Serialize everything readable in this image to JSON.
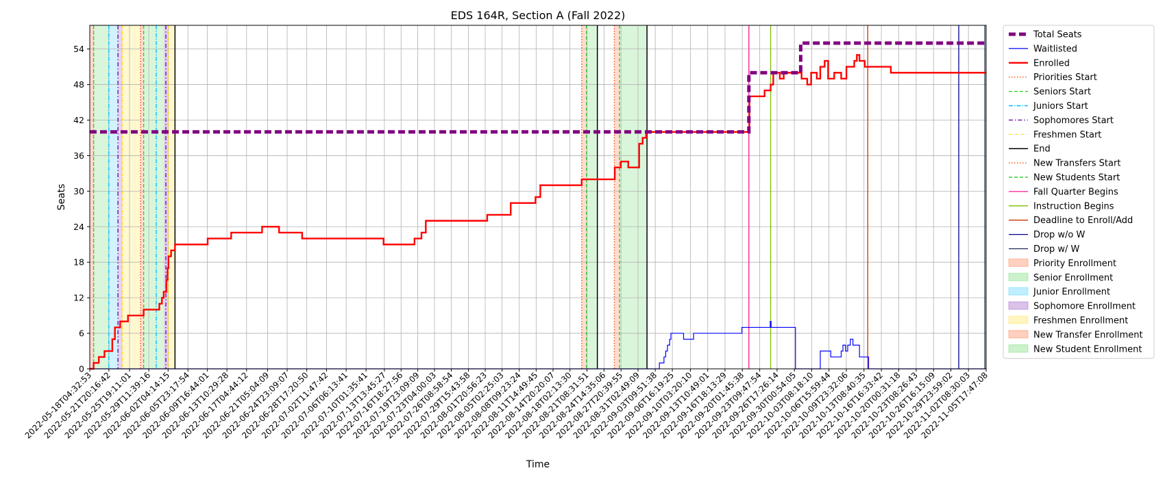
{
  "chart_data": {
    "type": "line",
    "title": "EDS 164R, Section A (Fall 2022)",
    "xlabel": "Time",
    "ylabel": "Seats",
    "ylim": [
      0,
      58
    ],
    "yticks": [
      0,
      6,
      12,
      18,
      24,
      30,
      36,
      42,
      48,
      54
    ],
    "grid": true,
    "legend_position": "outside-right",
    "xlim": [
      "2022-05-18T04:32:53",
      "2022-11-05T17:47:08"
    ],
    "xticks": [
      "2022-05-18T04:32:53",
      "2022-05-21T20:16:42",
      "2022-05-25T19:11:01",
      "2022-05-29T11:39:16",
      "2022-06-02T04:14:15",
      "2022-06-05T23:17:54",
      "2022-06-09T16:44:01",
      "2022-06-13T10:29:28",
      "2022-06-17T04:44:12",
      "2022-06-21T05:04:09",
      "2022-06-24T23:09:07",
      "2022-06-28T17:20:50",
      "2022-07-02T11:47:42",
      "2022-07-06T06:13:41",
      "2022-07-10T01:35:41",
      "2022-07-13T13:45:27",
      "2022-07-16T18:27:56",
      "2022-07-19T23:09:09",
      "2022-07-23T04:00:03",
      "2022-07-26T08:58:54",
      "2022-07-29T15:43:58",
      "2022-08-01T20:56:23",
      "2022-08-05T02:25:03",
      "2022-08-08T09:23:24",
      "2022-08-11T14:49:45",
      "2022-08-14T20:20:07",
      "2022-08-18T02:13:30",
      "2022-08-21T08:31:51",
      "2022-08-24T14:35:06",
      "2022-08-27T20:39:55",
      "2022-08-31T02:49:09",
      "2022-09-03T09:51:38",
      "2022-09-06T16:19:25",
      "2022-09-10T03:20:10",
      "2022-09-13T10:49:01",
      "2022-09-16T18:13:29",
      "2022-09-20T01:45:38",
      "2022-09-23T09:47:54",
      "2022-09-26T17:26:14",
      "2022-09-30T00:54:05",
      "2022-10-03T08:18:10",
      "2022-10-06T15:59:44",
      "2022-10-09T23:32:06",
      "2022-10-13T08:40:35",
      "2022-10-16T16:33:42",
      "2022-10-20T00:31:18",
      "2022-10-23T08:26:43",
      "2022-10-26T16:15:09",
      "2022-10-29T23:59:02",
      "2022-11-02T08:30:03",
      "2022-11-05T17:47:08"
    ],
    "colors": {
      "total": "#800080",
      "waitlisted": "#0000ff",
      "enrolled": "#ff0000",
      "priority": "#ff4500",
      "senior": "#32cd32",
      "junior": "#00bfff",
      "sophomore": "#6a0dad",
      "freshmen": "#ffd700",
      "end": "#000000",
      "new_transfer": "#ff4500",
      "new_student": "#32cd32",
      "fall_quarter": "#ff1493",
      "instruction": "#7cbb00",
      "deadline": "#cc3300",
      "drop_wo_w": "#00008b",
      "drop_w_w": "#1a2a55"
    },
    "shaded_periods": [
      {
        "kind": "priority",
        "start": "2022-05-18T04:32:53",
        "end": "2022-05-18T22:00:00"
      },
      {
        "kind": "senior",
        "start": "2022-05-18T22:00:00",
        "end": "2022-05-21T20:00:00"
      },
      {
        "kind": "junior",
        "start": "2022-05-21T20:00:00",
        "end": "2022-05-23T14:00:00"
      },
      {
        "kind": "sophomore",
        "start": "2022-05-23T14:00:00",
        "end": "2022-05-24T10:00:00"
      },
      {
        "kind": "freshmen",
        "start": "2022-05-24T10:00:00",
        "end": "2022-05-27T22:00:00"
      },
      {
        "kind": "priority",
        "start": "2022-05-27T22:00:00",
        "end": "2022-05-28T12:00:00"
      },
      {
        "kind": "senior",
        "start": "2022-05-28T12:00:00",
        "end": "2022-06-01T08:00:00"
      },
      {
        "kind": "sophomore",
        "start": "2022-06-01T08:00:00",
        "end": "2022-06-02T06:00:00"
      },
      {
        "kind": "freshmen",
        "start": "2022-06-02T06:00:00",
        "end": "2022-06-03T12:00:00"
      },
      {
        "kind": "new_transfer",
        "start": "2022-08-20T08:00:00",
        "end": "2022-08-21T06:00:00"
      },
      {
        "kind": "new_student",
        "start": "2022-08-21T06:00:00",
        "end": "2022-08-23T08:00:00"
      },
      {
        "kind": "new_transfer",
        "start": "2022-08-26T14:00:00",
        "end": "2022-08-27T14:00:00"
      },
      {
        "kind": "new_student",
        "start": "2022-08-27T14:00:00",
        "end": "2022-09-01T20:00:00"
      }
    ],
    "markers": [
      {
        "kind": "priority",
        "x": "2022-05-18T22:00:00"
      },
      {
        "kind": "senior",
        "x": "2022-05-18T22:00:00"
      },
      {
        "kind": "junior",
        "x": "2022-05-21T20:00:00"
      },
      {
        "kind": "sophomore",
        "x": "2022-05-23T14:00:00"
      },
      {
        "kind": "freshmen",
        "x": "2022-05-24T10:00:00"
      },
      {
        "kind": "priority",
        "x": "2022-05-27T22:00:00"
      },
      {
        "kind": "senior",
        "x": "2022-05-28T12:00:00"
      },
      {
        "kind": "junior",
        "x": "2022-05-30T22:00:00"
      },
      {
        "kind": "sophomore",
        "x": "2022-06-01T18:00:00"
      },
      {
        "kind": "freshmen",
        "x": "2022-06-02T06:00:00"
      },
      {
        "kind": "end",
        "x": "2022-06-03T12:00:00"
      },
      {
        "kind": "new_transfer",
        "x": "2022-08-20T08:00:00"
      },
      {
        "kind": "new_student",
        "x": "2022-08-21T06:00:00"
      },
      {
        "kind": "end",
        "x": "2022-08-23T08:00:00"
      },
      {
        "kind": "new_transfer",
        "x": "2022-08-26T14:00:00"
      },
      {
        "kind": "new_student",
        "x": "2022-08-27T14:00:00"
      },
      {
        "kind": "end",
        "x": "2022-09-01T20:00:00"
      },
      {
        "kind": "fall_quarter",
        "x": "2022-09-21T08:00:00"
      },
      {
        "kind": "instruction",
        "x": "2022-09-25T12:00:00"
      },
      {
        "kind": "deadline",
        "x": "2022-10-14T02:00:00"
      },
      {
        "kind": "drop_wo_w",
        "x": "2022-10-31T12:00:00"
      },
      {
        "kind": "drop_w_w",
        "x": "2022-11-05T12:00:00"
      }
    ],
    "series": [
      {
        "key": "total",
        "name": "Total Seats",
        "points": [
          [
            "2022-05-18T04:32:53",
            40
          ],
          [
            "2022-09-21T08:00:00",
            50
          ],
          [
            "2022-10-01T06:00:00",
            55
          ],
          [
            "2022-11-05T17:47:08",
            55
          ]
        ]
      },
      {
        "key": "waitlisted",
        "name": "Waitlisted",
        "points": [
          [
            "2022-05-18T04:32:53",
            0
          ],
          [
            "2022-09-04T05:00:00",
            1
          ],
          [
            "2022-09-05T02:00:00",
            2
          ],
          [
            "2022-09-05T10:00:00",
            3
          ],
          [
            "2022-09-05T18:00:00",
            4
          ],
          [
            "2022-09-06T04:00:00",
            5
          ],
          [
            "2022-09-06T10:00:00",
            6
          ],
          [
            "2022-09-08T20:00:00",
            5
          ],
          [
            "2022-09-10T18:00:00",
            6
          ],
          [
            "2022-09-20T00:00:00",
            7
          ],
          [
            "2022-09-25T10:00:00",
            8
          ],
          [
            "2022-09-25T14:00:00",
            7
          ],
          [
            "2022-09-30T06:00:00",
            0
          ],
          [
            "2022-10-05T00:00:00",
            3
          ],
          [
            "2022-10-07T00:00:00",
            2
          ],
          [
            "2022-10-09T00:00:00",
            3
          ],
          [
            "2022-10-09T08:00:00",
            4
          ],
          [
            "2022-10-09T20:00:00",
            3
          ],
          [
            "2022-10-10T06:00:00",
            4
          ],
          [
            "2022-10-10T18:00:00",
            5
          ],
          [
            "2022-10-11T06:00:00",
            4
          ],
          [
            "2022-10-12T12:00:00",
            2
          ],
          [
            "2022-10-14T06:00:00",
            0
          ],
          [
            "2022-11-05T17:47:08",
            0
          ]
        ]
      },
      {
        "key": "enrolled",
        "name": "Enrolled",
        "points": [
          [
            "2022-05-18T04:32:53",
            0
          ],
          [
            "2022-05-18T22:00:00",
            1
          ],
          [
            "2022-05-19T22:00:00",
            2
          ],
          [
            "2022-05-21T00:00:00",
            3
          ],
          [
            "2022-05-22T12:00:00",
            5
          ],
          [
            "2022-05-23T00:00:00",
            7
          ],
          [
            "2022-05-24T00:00:00",
            8
          ],
          [
            "2022-05-25T12:00:00",
            9
          ],
          [
            "2022-05-28T12:00:00",
            10
          ],
          [
            "2022-05-31T12:00:00",
            11
          ],
          [
            "2022-06-01T00:00:00",
            12
          ],
          [
            "2022-06-01T08:00:00",
            13
          ],
          [
            "2022-06-01T20:00:00",
            15
          ],
          [
            "2022-06-02T02:00:00",
            17
          ],
          [
            "2022-06-02T06:00:00",
            19
          ],
          [
            "2022-06-02T18:00:00",
            20
          ],
          [
            "2022-06-03T12:00:00",
            21
          ],
          [
            "2022-06-09T18:00:00",
            22
          ],
          [
            "2022-06-14T06:00:00",
            23
          ],
          [
            "2022-06-20T04:00:00",
            24
          ],
          [
            "2022-06-23T10:00:00",
            23
          ],
          [
            "2022-06-27T20:00:00",
            22
          ],
          [
            "2022-07-13T10:00:00",
            21
          ],
          [
            "2022-07-19T08:00:00",
            22
          ],
          [
            "2022-07-20T16:00:00",
            23
          ],
          [
            "2022-07-21T12:00:00",
            25
          ],
          [
            "2022-08-02T06:00:00",
            26
          ],
          [
            "2022-08-06T18:00:00",
            28
          ],
          [
            "2022-08-11T12:00:00",
            29
          ],
          [
            "2022-08-12T10:00:00",
            31
          ],
          [
            "2022-08-20T08:00:00",
            32
          ],
          [
            "2022-08-26T16:00:00",
            34
          ],
          [
            "2022-08-27T20:00:00",
            35
          ],
          [
            "2022-08-29T06:00:00",
            34
          ],
          [
            "2022-08-31T08:00:00",
            38
          ],
          [
            "2022-09-01T00:00:00",
            39
          ],
          [
            "2022-09-01T16:00:00",
            40
          ],
          [
            "2022-09-21T10:00:00",
            46
          ],
          [
            "2022-09-24T08:00:00",
            47
          ],
          [
            "2022-09-25T12:00:00",
            48
          ],
          [
            "2022-09-26T00:00:00",
            50
          ],
          [
            "2022-09-27T06:00:00",
            49
          ],
          [
            "2022-09-28T00:00:00",
            50
          ],
          [
            "2022-10-01T10:00:00",
            49
          ],
          [
            "2022-10-02T12:00:00",
            48
          ],
          [
            "2022-10-03T06:00:00",
            50
          ],
          [
            "2022-10-04T08:00:00",
            49
          ],
          [
            "2022-10-05T00:00:00",
            51
          ],
          [
            "2022-10-05T20:00:00",
            52
          ],
          [
            "2022-10-06T12:00:00",
            49
          ],
          [
            "2022-10-07T16:00:00",
            50
          ],
          [
            "2022-10-09T00:00:00",
            49
          ],
          [
            "2022-10-10T00:00:00",
            51
          ],
          [
            "2022-10-11T12:00:00",
            52
          ],
          [
            "2022-10-12T00:00:00",
            53
          ],
          [
            "2022-10-12T12:00:00",
            52
          ],
          [
            "2022-10-13T12:00:00",
            51
          ],
          [
            "2022-10-18T12:00:00",
            50
          ],
          [
            "2022-11-05T17:47:08",
            50
          ]
        ]
      }
    ],
    "legend": [
      {
        "key": "total",
        "label": "Total Seats",
        "style": "line",
        "dash": "10,5",
        "width": 5
      },
      {
        "key": "waitlisted",
        "label": "Waitlisted",
        "style": "line",
        "dash": "",
        "width": 1.2
      },
      {
        "key": "enrolled",
        "label": "Enrolled",
        "style": "line",
        "dash": "",
        "width": 2.4
      },
      {
        "key": "priority",
        "label": "Priorities Start",
        "style": "line",
        "dash": "1.5,2.5",
        "width": 1.4
      },
      {
        "key": "senior",
        "label": "Seniors Start",
        "style": "line",
        "dash": "5,3",
        "width": 1.4
      },
      {
        "key": "junior",
        "label": "Juniors Start",
        "style": "line",
        "dash": "6,2,1.5,2",
        "width": 1.4
      },
      {
        "key": "sophomore",
        "label": "Sophomores Start",
        "style": "line",
        "dash": "6,3,1.5,3",
        "width": 1.4
      },
      {
        "key": "freshmen",
        "label": "Freshmen Start",
        "style": "line",
        "dash": "4,2,1,2",
        "width": 1.2
      },
      {
        "key": "end",
        "label": "End",
        "style": "line",
        "dash": "",
        "width": 1.5
      },
      {
        "key": "new_transfer",
        "label": "New Transfers Start",
        "style": "line",
        "dash": "1.5,2.5",
        "width": 1.4
      },
      {
        "key": "new_student",
        "label": "New Students Start",
        "style": "line",
        "dash": "5,3",
        "width": 1.4
      },
      {
        "key": "fall_quarter",
        "label": "Fall Quarter Begins",
        "style": "line",
        "dash": "",
        "width": 1.3
      },
      {
        "key": "instruction",
        "label": "Instruction Begins",
        "style": "line",
        "dash": "",
        "width": 1.3
      },
      {
        "key": "deadline",
        "label": "Deadline to Enroll/Add",
        "style": "line",
        "dash": "",
        "width": 1.3
      },
      {
        "key": "drop_wo_w",
        "label": "Drop w/o W",
        "style": "line",
        "dash": "",
        "width": 1.3
      },
      {
        "key": "drop_w_w",
        "label": "Drop w/ W",
        "style": "line",
        "dash": "",
        "width": 1.3
      },
      {
        "key": "priority",
        "label": "Priority Enrollment",
        "style": "patch"
      },
      {
        "key": "senior",
        "label": "Senior Enrollment",
        "style": "patch"
      },
      {
        "key": "junior",
        "label": "Junior Enrollment",
        "style": "patch"
      },
      {
        "key": "sophomore",
        "label": "Sophomore Enrollment",
        "style": "patch"
      },
      {
        "key": "freshmen",
        "label": "Freshmen Enrollment",
        "style": "patch"
      },
      {
        "key": "new_transfer",
        "label": "New Transfer Enrollment",
        "style": "patch"
      },
      {
        "key": "new_student",
        "label": "New Student Enrollment",
        "style": "patch"
      }
    ]
  }
}
